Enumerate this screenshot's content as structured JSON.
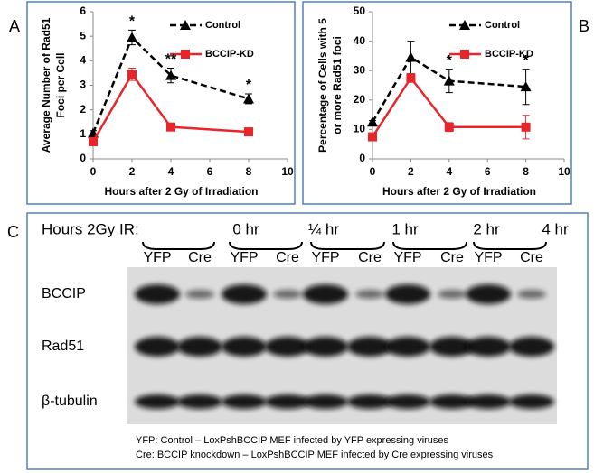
{
  "panel_labels": [
    "A",
    "B",
    "C"
  ],
  "chart_data": [
    {
      "type": "line",
      "xlabel": "Hours after 2 Gy of Irradiation",
      "ylabel": [
        "Average Number of Rad51",
        "Foci per Cell"
      ],
      "x": [
        0,
        2,
        4,
        8
      ],
      "xlim": [
        0,
        10
      ],
      "xticks": [
        0,
        2,
        4,
        6,
        8,
        10
      ],
      "ylim": [
        0,
        6
      ],
      "yticks": [
        0,
        1,
        2,
        3,
        4,
        5,
        6
      ],
      "series": [
        {
          "name": "Control",
          "color": "#000000",
          "marker": "triangle",
          "dashed": true,
          "values": [
            1.05,
            4.95,
            3.4,
            2.45
          ],
          "errors": [
            0.1,
            0.3,
            0.3,
            0.2
          ]
        },
        {
          "name": "BCCIP-KD",
          "color": "#e8262a",
          "marker": "square",
          "dashed": false,
          "values": [
            0.7,
            3.45,
            1.3,
            1.1
          ],
          "errors": [
            0.1,
            0.25,
            0.15,
            0.1
          ]
        }
      ],
      "annotations": [
        {
          "x": 2,
          "text": "*"
        },
        {
          "x": 4,
          "text": "**"
        },
        {
          "x": 8,
          "text": "*"
        }
      ]
    },
    {
      "type": "line",
      "xlabel": "Hours after 2 Gy of Irradiation",
      "ylabel": [
        "Percentage of Cells with 5",
        "or more Rad51 foci"
      ],
      "x": [
        0,
        2,
        4,
        8
      ],
      "xlim": [
        0,
        10
      ],
      "xticks": [
        0,
        2,
        4,
        6,
        8,
        10
      ],
      "ylim": [
        0,
        50
      ],
      "yticks": [
        0,
        10,
        20,
        30,
        40,
        50
      ],
      "series": [
        {
          "name": "Control",
          "color": "#000000",
          "marker": "triangle",
          "dashed": true,
          "values": [
            12.5,
            34.5,
            26.5,
            24.5
          ],
          "errors": [
            0.5,
            5.5,
            4,
            6
          ]
        },
        {
          "name": "BCCIP-KD",
          "color": "#e8262a",
          "marker": "square",
          "dashed": false,
          "values": [
            7.5,
            27.5,
            10.8,
            10.8
          ],
          "errors": [
            1,
            1.5,
            1.5,
            4
          ]
        }
      ],
      "annotations": [
        {
          "x": 4,
          "text": "*"
        },
        {
          "x": 8,
          "text": "*"
        }
      ]
    }
  ],
  "blot": {
    "header": "Hours 2Gy IR:",
    "timepoints": [
      "0 hr",
      "¼ hr",
      "1 hr",
      "2 hr",
      "4 hr"
    ],
    "lanes": [
      "YFP",
      "Cre"
    ],
    "proteins": [
      "BCCIP",
      "Rad51",
      "β-tubulin"
    ],
    "footnotes": [
      "YFP:  Control – LoxPshBCCIP MEF infected by YFP expressing viruses",
      "Cre:  BCCIP knockdown – LoxPshBCCIP MEF infected by Cre expressing viruses"
    ]
  }
}
